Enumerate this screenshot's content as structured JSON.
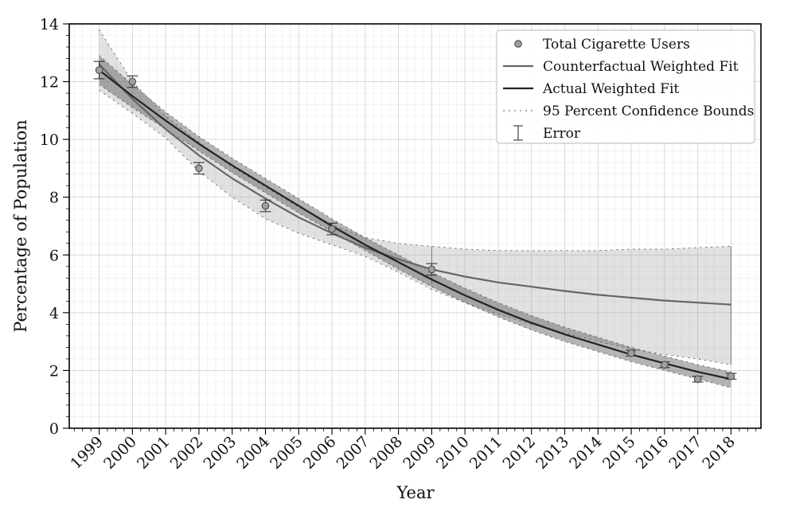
{
  "chart_data": {
    "type": "line",
    "xlabel": "Year",
    "ylabel": "Percentage of Population",
    "xlim": [
      1998.1,
      2018.9
    ],
    "ylim": [
      0,
      14
    ],
    "x_ticks": [
      1999,
      2000,
      2001,
      2002,
      2003,
      2004,
      2005,
      2006,
      2007,
      2008,
      2009,
      2010,
      2011,
      2012,
      2013,
      2014,
      2015,
      2016,
      2017,
      2018
    ],
    "y_ticks": [
      0,
      2,
      4,
      6,
      8,
      10,
      12,
      14
    ],
    "grid": true,
    "legend_position": "top-right",
    "legend": [
      {
        "label": "Total Cigarette Users",
        "kind": "marker"
      },
      {
        "label": "Counterfactual Weighted Fit",
        "kind": "line",
        "color": "#666666"
      },
      {
        "label": "Actual Weighted Fit",
        "kind": "line",
        "color": "#222222"
      },
      {
        "label": "95 Percent Confidence Bounds",
        "kind": "dotted"
      },
      {
        "label": "Error",
        "kind": "errorbar"
      }
    ],
    "observations": {
      "name": "Total Cigarette Users",
      "x": [
        1999,
        2000,
        2002,
        2004,
        2006,
        2009,
        2015,
        2016,
        2017,
        2018
      ],
      "y": [
        12.4,
        12.0,
        9.0,
        7.7,
        6.9,
        5.5,
        2.6,
        2.2,
        1.7,
        1.8
      ],
      "error": [
        0.3,
        0.2,
        0.2,
        0.2,
        0.2,
        0.2,
        0.1,
        0.1,
        0.1,
        0.1
      ]
    },
    "series": [
      {
        "name": "Actual Weighted Fit",
        "color": "#222222",
        "x": [
          1999,
          2000,
          2001,
          2002,
          2003,
          2004,
          2005,
          2006,
          2007,
          2008,
          2009,
          2010,
          2011,
          2012,
          2013,
          2014,
          2015,
          2016,
          2017,
          2018
        ],
        "y": [
          12.4,
          11.5,
          10.65,
          9.85,
          9.1,
          8.4,
          7.7,
          7.0,
          6.35,
          5.75,
          5.15,
          4.6,
          4.1,
          3.65,
          3.25,
          2.9,
          2.55,
          2.25,
          1.95,
          1.7
        ],
        "lower": [
          11.9,
          11.1,
          10.35,
          9.6,
          8.85,
          8.15,
          7.45,
          6.8,
          6.15,
          5.5,
          4.9,
          4.35,
          3.85,
          3.4,
          3.0,
          2.65,
          2.3,
          2.0,
          1.7,
          1.4
        ],
        "upper": [
          12.9,
          11.9,
          10.95,
          10.1,
          9.35,
          8.65,
          7.95,
          7.25,
          6.6,
          6.0,
          5.4,
          4.85,
          4.35,
          3.9,
          3.5,
          3.15,
          2.8,
          2.5,
          2.2,
          1.95
        ]
      },
      {
        "name": "Counterfactual Weighted Fit",
        "color": "#666666",
        "x": [
          1999,
          2000,
          2001,
          2002,
          2003,
          2004,
          2005,
          2006,
          2007,
          2008,
          2009,
          2010,
          2011,
          2012,
          2013,
          2014,
          2015,
          2016,
          2017,
          2018
        ],
        "y": [
          12.6,
          11.4,
          10.35,
          9.45,
          8.65,
          7.95,
          7.3,
          6.75,
          6.25,
          5.85,
          5.5,
          5.25,
          5.05,
          4.9,
          4.75,
          4.62,
          4.52,
          4.42,
          4.35,
          4.28
        ],
        "lower": [
          11.7,
          10.9,
          10.05,
          8.9,
          8.0,
          7.25,
          6.75,
          6.35,
          5.95,
          5.4,
          4.8,
          4.35,
          3.95,
          3.6,
          3.3,
          3.0,
          2.75,
          2.55,
          2.4,
          2.2
        ],
        "upper": [
          13.8,
          12.0,
          10.8,
          9.9,
          9.05,
          8.35,
          7.65,
          7.05,
          6.6,
          6.4,
          6.3,
          6.2,
          6.15,
          6.15,
          6.15,
          6.15,
          6.2,
          6.2,
          6.25,
          6.3
        ]
      }
    ]
  }
}
